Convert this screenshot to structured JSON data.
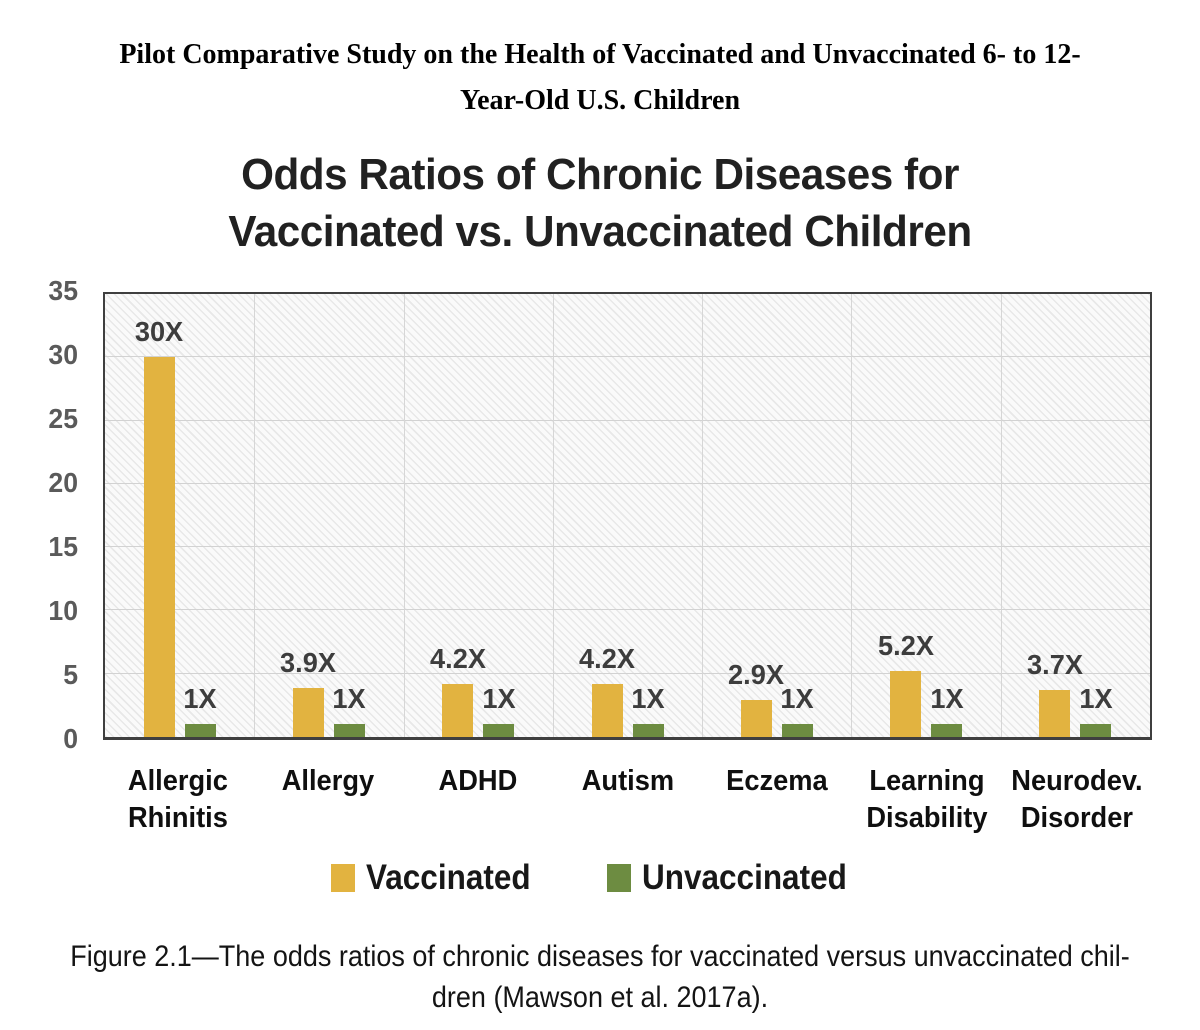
{
  "page": {
    "doc_title_lines": [
      "Pilot Comparative Study on the Health of Vaccinated and Unvaccinated 6- to 12-",
      "Year-Old U.S. Children"
    ],
    "caption_lines": [
      "Figure 2.1—The odds ratios of chronic diseases for vaccinated versus unvaccinated chil-",
      "dren (Mawson et al. 2017a)."
    ]
  },
  "chart_data": {
    "type": "bar",
    "title": "Odds Ratios of Chronic Diseases for Vaccinated vs. Unvaccinated Children",
    "title_lines": [
      "Odds Ratios of Chronic Diseases for",
      "Vaccinated vs. Unvaccinated Children"
    ],
    "categories": [
      "Allergic Rhinitis",
      "Allergy",
      "ADHD",
      "Autism",
      "Eczema",
      "Learning Disability",
      "Neurodev. Disorder"
    ],
    "category_lines": [
      [
        "Allergic",
        "Rhinitis"
      ],
      [
        "Allergy"
      ],
      [
        "ADHD"
      ],
      [
        "Autism"
      ],
      [
        "Eczema"
      ],
      [
        "Learning",
        "Disability"
      ],
      [
        "Neurodev.",
        "Disorder"
      ]
    ],
    "series": [
      {
        "name": "Vaccinated",
        "color": "#e2b340",
        "values": [
          30,
          3.9,
          4.2,
          4.2,
          2.9,
          5.2,
          3.7
        ],
        "labels": [
          "30X",
          "3.9X",
          "4.2X",
          "4.2X",
          "2.9X",
          "5.2X",
          "3.7X"
        ]
      },
      {
        "name": "Unvaccinated",
        "color": "#6d8c41",
        "values": [
          1,
          1,
          1,
          1,
          1,
          1,
          1
        ],
        "labels": [
          "1X",
          "1X",
          "1X",
          "1X",
          "1X",
          "1X",
          "1X"
        ]
      }
    ],
    "ylim": [
      0,
      35
    ],
    "yticks": [
      0,
      5,
      10,
      15,
      20,
      25,
      30,
      35
    ],
    "grid": true,
    "legend_position": "bottom",
    "colors": {
      "plot_border": "#3f3f3f",
      "gridline": "#d4d4d4",
      "tick_label": "#5a5a5a",
      "value_label": "#3d3d3d"
    }
  }
}
